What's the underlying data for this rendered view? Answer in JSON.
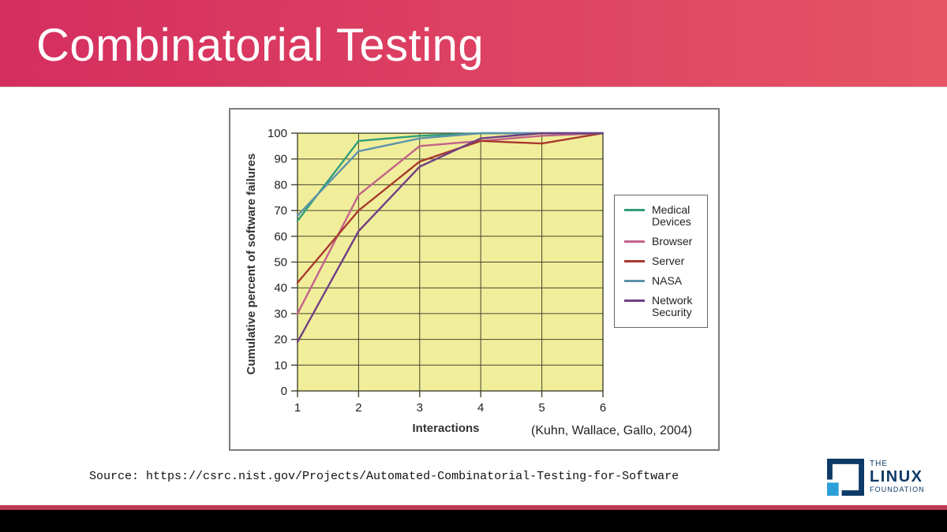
{
  "slide": {
    "title": "Combinatorial Testing",
    "source_text": "Source: https://csrc.nist.gov/Projects/Automated-Combinatorial-Testing-for-Software"
  },
  "logo": {
    "the": "THE",
    "linux": "LINUX",
    "foundation": "FOUNDATION",
    "navy": "#0d3a66",
    "light_blue": "#2d9fd8"
  },
  "theme": {
    "header_gradient_left": "#d42e5f",
    "header_gradient_right": "#e65465",
    "footer_line_color": "#bd3a55",
    "footer_bar_color": "#000000"
  },
  "chart_data": {
    "type": "line",
    "title": "",
    "xlabel": "Interactions",
    "ylabel": "Cumulative percent of software failures",
    "citation": "(Kuhn, Wallace, Gallo, 2004)",
    "x": [
      1,
      2,
      3,
      4,
      5,
      6
    ],
    "x_ticks": [
      1,
      2,
      3,
      4,
      5,
      6
    ],
    "y_ticks": [
      0,
      10,
      20,
      30,
      40,
      50,
      60,
      70,
      80,
      90,
      100
    ],
    "xlim": [
      1,
      6
    ],
    "ylim": [
      0,
      100
    ],
    "grid": true,
    "legend_position": "right",
    "plot_bg": "#f1ee9b",
    "grid_color": "#44442e",
    "tick_label_color": "#222222",
    "series": [
      {
        "name": "Medical Devices",
        "color": "#2f9e7a",
        "values": [
          66,
          97,
          99,
          100,
          100,
          100
        ]
      },
      {
        "name": "Browser",
        "color": "#c2638a",
        "values": [
          30,
          76,
          95,
          97,
          99,
          100
        ]
      },
      {
        "name": "Server",
        "color": "#a8392e",
        "values": [
          42,
          70,
          89,
          97,
          96,
          100
        ]
      },
      {
        "name": "NASA",
        "color": "#5d93aa",
        "values": [
          68,
          93,
          98,
          100,
          100,
          100
        ]
      },
      {
        "name": "Network Security",
        "color": "#6f4084",
        "values": [
          19,
          62,
          87,
          98,
          100,
          100
        ]
      }
    ]
  }
}
